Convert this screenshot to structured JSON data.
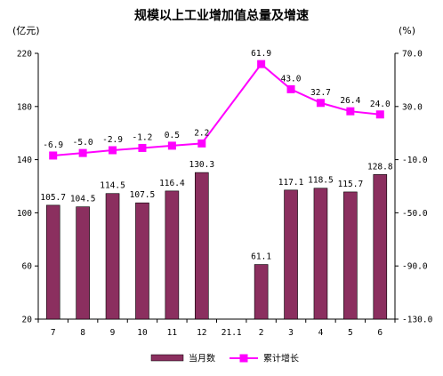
{
  "chart_data": {
    "type": "bar+line",
    "title": "规模以上工业增加值总量及增速",
    "y_left_unit": "(亿元)",
    "y_right_unit": "(%)",
    "categories": [
      "7",
      "8",
      "9",
      "10",
      "11",
      "12",
      "21.1",
      "2",
      "3",
      "4",
      "5",
      "6"
    ],
    "y_left": {
      "ticks": [
        "220",
        "180",
        "140",
        "100",
        "60",
        "20"
      ],
      "range": [
        20,
        220
      ]
    },
    "y_right": {
      "ticks": [
        "70.0",
        "30.0",
        "-10.0",
        "-50.0",
        "-90.0",
        "-130.0"
      ],
      "range": [
        -130,
        70
      ]
    },
    "series": [
      {
        "name": "当月数",
        "kind": "bar",
        "axis": "left",
        "color": "#8B2F5F",
        "values": [
          105.7,
          104.5,
          114.5,
          107.5,
          116.4,
          130.3,
          null,
          61.1,
          117.1,
          118.5,
          115.7,
          128.8
        ],
        "labels": [
          "105.7",
          "104.5",
          "114.5",
          "107.5",
          "116.4",
          "130.3",
          "",
          "61.1",
          "117.1",
          "118.5",
          "115.7",
          "128.8"
        ]
      },
      {
        "name": "累计增长",
        "kind": "line",
        "axis": "right",
        "color": "#FF00FF",
        "values": [
          -6.9,
          -5.0,
          -2.9,
          -1.2,
          0.5,
          2.2,
          null,
          61.9,
          43.0,
          32.7,
          26.4,
          24.0
        ],
        "labels": [
          "-6.9",
          "-5.0",
          "-2.9",
          "-1.2",
          "0.5",
          "2.2",
          "",
          "61.9",
          "43.0",
          "32.7",
          "26.4",
          "24.0"
        ]
      }
    ]
  }
}
